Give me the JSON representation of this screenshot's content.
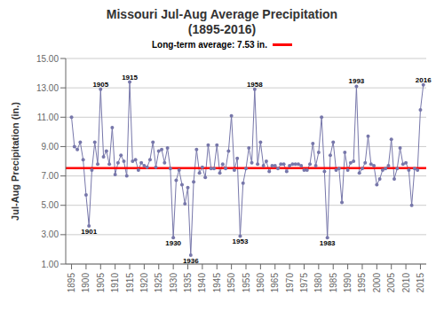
{
  "chart_data": {
    "type": "line",
    "title": "Missouri Jul-Aug Average Precipitation\n(1895-2016)",
    "ylabel": "Jul-Aug Precipitation (in.)",
    "x": [
      1895,
      1896,
      1897,
      1898,
      1899,
      1900,
      1901,
      1902,
      1903,
      1904,
      1905,
      1906,
      1907,
      1908,
      1909,
      1910,
      1911,
      1912,
      1913,
      1914,
      1915,
      1916,
      1917,
      1918,
      1919,
      1920,
      1921,
      1922,
      1923,
      1924,
      1925,
      1926,
      1927,
      1928,
      1929,
      1930,
      1931,
      1932,
      1933,
      1934,
      1935,
      1936,
      1937,
      1938,
      1939,
      1940,
      1941,
      1942,
      1943,
      1944,
      1945,
      1946,
      1947,
      1948,
      1949,
      1950,
      1951,
      1952,
      1953,
      1954,
      1955,
      1956,
      1957,
      1958,
      1959,
      1960,
      1961,
      1962,
      1963,
      1964,
      1965,
      1966,
      1967,
      1968,
      1969,
      1970,
      1971,
      1972,
      1973,
      1974,
      1975,
      1976,
      1977,
      1978,
      1979,
      1980,
      1981,
      1982,
      1983,
      1984,
      1985,
      1986,
      1987,
      1988,
      1989,
      1990,
      1991,
      1992,
      1993,
      1994,
      1995,
      1996,
      1997,
      1998,
      1999,
      2000,
      2001,
      2002,
      2003,
      2004,
      2005,
      2006,
      2007,
      2008,
      2009,
      2010,
      2011,
      2012,
      2013,
      2014,
      2015,
      2016
    ],
    "values": [
      11.0,
      9.0,
      8.8,
      9.3,
      8.1,
      5.7,
      3.6,
      7.4,
      9.3,
      7.8,
      12.9,
      8.3,
      8.7,
      7.8,
      10.3,
      7.1,
      7.9,
      8.4,
      8.0,
      7.0,
      13.4,
      8.0,
      8.1,
      7.4,
      7.9,
      7.7,
      7.6,
      8.1,
      9.3,
      7.6,
      8.7,
      8.8,
      7.9,
      8.9,
      7.5,
      2.8,
      6.7,
      7.4,
      6.4,
      5.1,
      6.2,
      1.6,
      6.6,
      8.8,
      7.2,
      7.6,
      6.9,
      9.1,
      7.5,
      7.5,
      9.1,
      7.2,
      7.8,
      7.5,
      8.7,
      11.1,
      7.4,
      8.2,
      2.9,
      6.5,
      7.5,
      8.9,
      7.9,
      12.9,
      7.8,
      9.3,
      7.7,
      8.0,
      7.3,
      7.7,
      7.7,
      7.5,
      7.8,
      7.8,
      7.3,
      7.7,
      7.8,
      7.8,
      7.8,
      7.7,
      7.4,
      7.4,
      7.8,
      9.2,
      7.7,
      8.6,
      11.0,
      7.3,
      2.8,
      8.4,
      9.3,
      7.4,
      7.5,
      5.2,
      8.6,
      7.4,
      7.9,
      8.0,
      13.1,
      7.2,
      7.5,
      7.9,
      9.7,
      7.8,
      7.7,
      6.4,
      6.8,
      7.4,
      7.5,
      7.7,
      9.5,
      6.8,
      7.5,
      8.9,
      7.8,
      7.9,
      7.4,
      5.0,
      7.5,
      7.4,
      11.5,
      13.2
    ],
    "color": "#7777AA",
    "marker": "circle",
    "xlim": [
      1893,
      2017
    ],
    "xticks": [
      1895,
      1900,
      1905,
      1910,
      1915,
      1920,
      1925,
      1930,
      1935,
      1940,
      1945,
      1950,
      1955,
      1960,
      1965,
      1970,
      1975,
      1980,
      1985,
      1990,
      1995,
      2000,
      2005,
      2010,
      2015
    ],
    "ylim": [
      1.0,
      15.0
    ],
    "yticks": [
      {
        "value": 1.0,
        "label": "1.00"
      },
      {
        "value": 3.0,
        "label": "3.00"
      },
      {
        "value": 5.0,
        "label": "5.00"
      },
      {
        "value": 7.0,
        "label": "7.00"
      },
      {
        "value": 9.0,
        "label": "9.00"
      },
      {
        "value": 11.0,
        "label": "11.00"
      },
      {
        "value": 13.0,
        "label": "13.00"
      },
      {
        "value": 15.0,
        "label": "15.00"
      }
    ],
    "grid": true,
    "reference_line": {
      "value": 7.53,
      "label": "Long-term average: 7.53 in.",
      "color": "#FF0000"
    },
    "annotations": [
      {
        "x": 1901,
        "y": 3.6,
        "text": "1901",
        "position": "below"
      },
      {
        "x": 1905,
        "y": 12.9,
        "text": "1905",
        "position": "above"
      },
      {
        "x": 1915,
        "y": 13.4,
        "text": "1915",
        "position": "above"
      },
      {
        "x": 1930,
        "y": 2.8,
        "text": "1930",
        "position": "below"
      },
      {
        "x": 1936,
        "y": 1.6,
        "text": "1936",
        "position": "below"
      },
      {
        "x": 1953,
        "y": 2.9,
        "text": "1953",
        "position": "below"
      },
      {
        "x": 1958,
        "y": 12.9,
        "text": "1958",
        "position": "above"
      },
      {
        "x": 1983,
        "y": 2.8,
        "text": "1983",
        "position": "below"
      },
      {
        "x": 1993,
        "y": 13.1,
        "text": "1993",
        "position": "above"
      },
      {
        "x": 2016,
        "y": 13.2,
        "text": "2016",
        "position": "above"
      }
    ]
  }
}
